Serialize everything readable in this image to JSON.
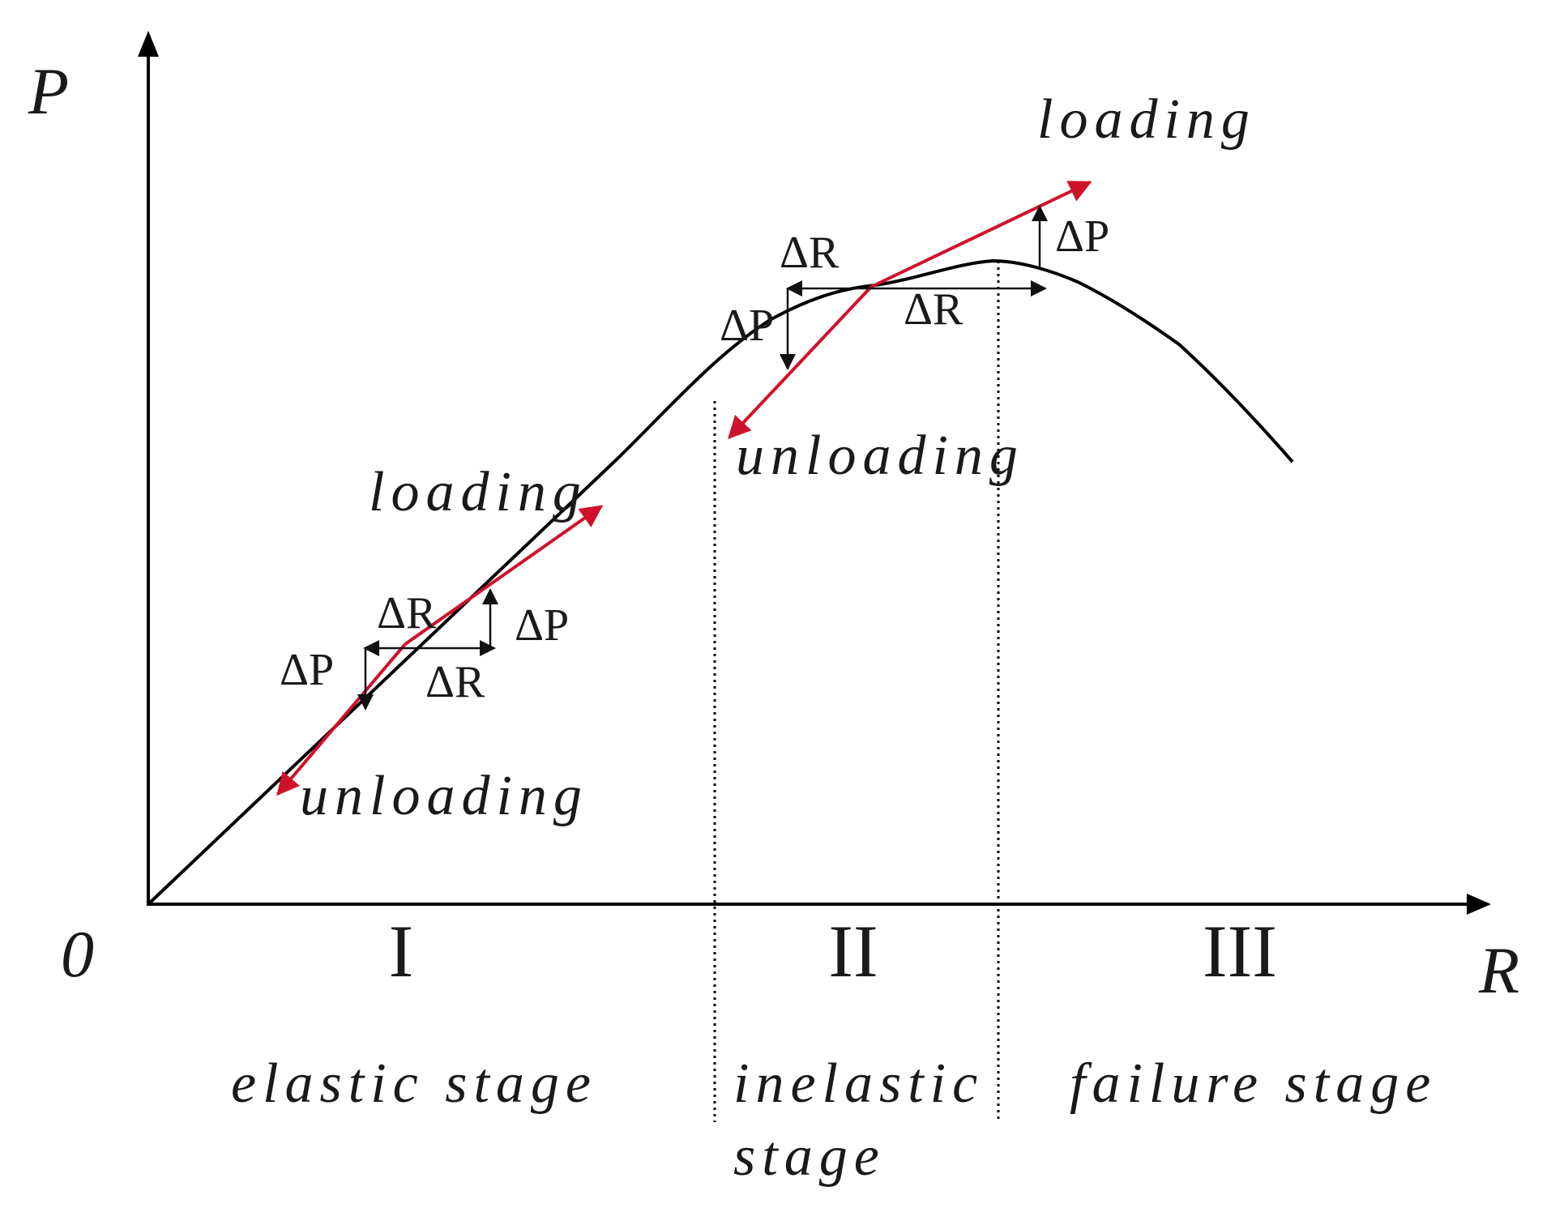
{
  "axes": {
    "y_label": "P",
    "x_label": "R",
    "origin_label": "0"
  },
  "stages": [
    {
      "numeral": "I",
      "name_line1": "elastic stage",
      "name_line2": ""
    },
    {
      "numeral": "II",
      "name_line1": "inelastic",
      "name_line2": "stage"
    },
    {
      "numeral": "III",
      "name_line1": "failure stage",
      "name_line2": ""
    }
  ],
  "elastic_annotations": {
    "loading": "loading",
    "unloading": "unloading",
    "delta_r_upper": "ΔR",
    "delta_r_lower": "ΔR",
    "delta_p_upper": "ΔP",
    "delta_p_lower": "ΔP"
  },
  "inelastic_annotations": {
    "loading": "loading",
    "unloading": "unloading",
    "delta_r_left": "ΔR",
    "delta_r_right": "ΔR",
    "delta_p_left": "ΔP",
    "delta_p_right": "ΔP"
  },
  "colors": {
    "curve": "#000000",
    "arrows": "#d0112b"
  }
}
